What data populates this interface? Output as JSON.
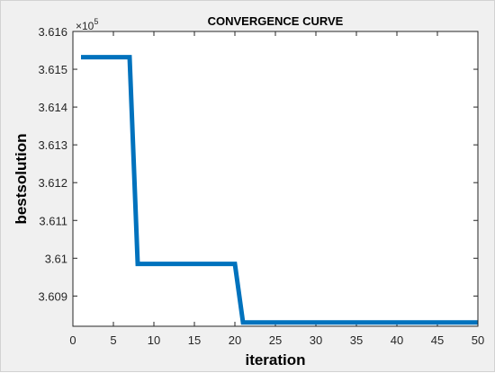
{
  "chart_data": {
    "type": "line",
    "title": "CONVERGENCE CURVE",
    "xlabel": "iteration",
    "ylabel": "bestsolution",
    "y_exponent_label": "×10",
    "y_exponent_power": "5",
    "xlim": [
      0,
      50
    ],
    "ylim": [
      3.6082,
      3.616
    ],
    "x_ticks": [
      0,
      5,
      10,
      15,
      20,
      25,
      30,
      35,
      40,
      45,
      50
    ],
    "x_tick_labels": [
      "0",
      "5",
      "10",
      "15",
      "20",
      "25",
      "30",
      "35",
      "40",
      "45",
      "50"
    ],
    "y_ticks": [
      3.609,
      3.61,
      3.611,
      3.612,
      3.613,
      3.614,
      3.615,
      3.616
    ],
    "y_tick_labels": [
      "3.609",
      "3.61",
      "3.611",
      "3.612",
      "3.613",
      "3.614",
      "3.615",
      "3.616"
    ],
    "grid": false,
    "series": [
      {
        "color": "#0072bd",
        "x": [
          1,
          2,
          3,
          4,
          5,
          6,
          7,
          8,
          9,
          10,
          11,
          12,
          13,
          14,
          15,
          16,
          17,
          18,
          19,
          20,
          21,
          22,
          23,
          24,
          25,
          26,
          27,
          28,
          29,
          30,
          31,
          32,
          33,
          34,
          35,
          36,
          37,
          38,
          39,
          40,
          41,
          42,
          43,
          44,
          45,
          46,
          47,
          48,
          49,
          50
        ],
        "y": [
          3.61532,
          3.61532,
          3.61532,
          3.61532,
          3.61532,
          3.61532,
          3.61532,
          3.60985,
          3.60985,
          3.60985,
          3.60985,
          3.60985,
          3.60985,
          3.60985,
          3.60985,
          3.60985,
          3.60985,
          3.60985,
          3.60985,
          3.60985,
          3.6083,
          3.6083,
          3.6083,
          3.6083,
          3.6083,
          3.6083,
          3.6083,
          3.6083,
          3.6083,
          3.6083,
          3.6083,
          3.6083,
          3.6083,
          3.6083,
          3.6083,
          3.6083,
          3.6083,
          3.6083,
          3.6083,
          3.6083,
          3.6083,
          3.6083,
          3.6083,
          3.6083,
          3.6083,
          3.6083,
          3.6083,
          3.6083,
          3.6083,
          3.6083
        ]
      }
    ]
  }
}
